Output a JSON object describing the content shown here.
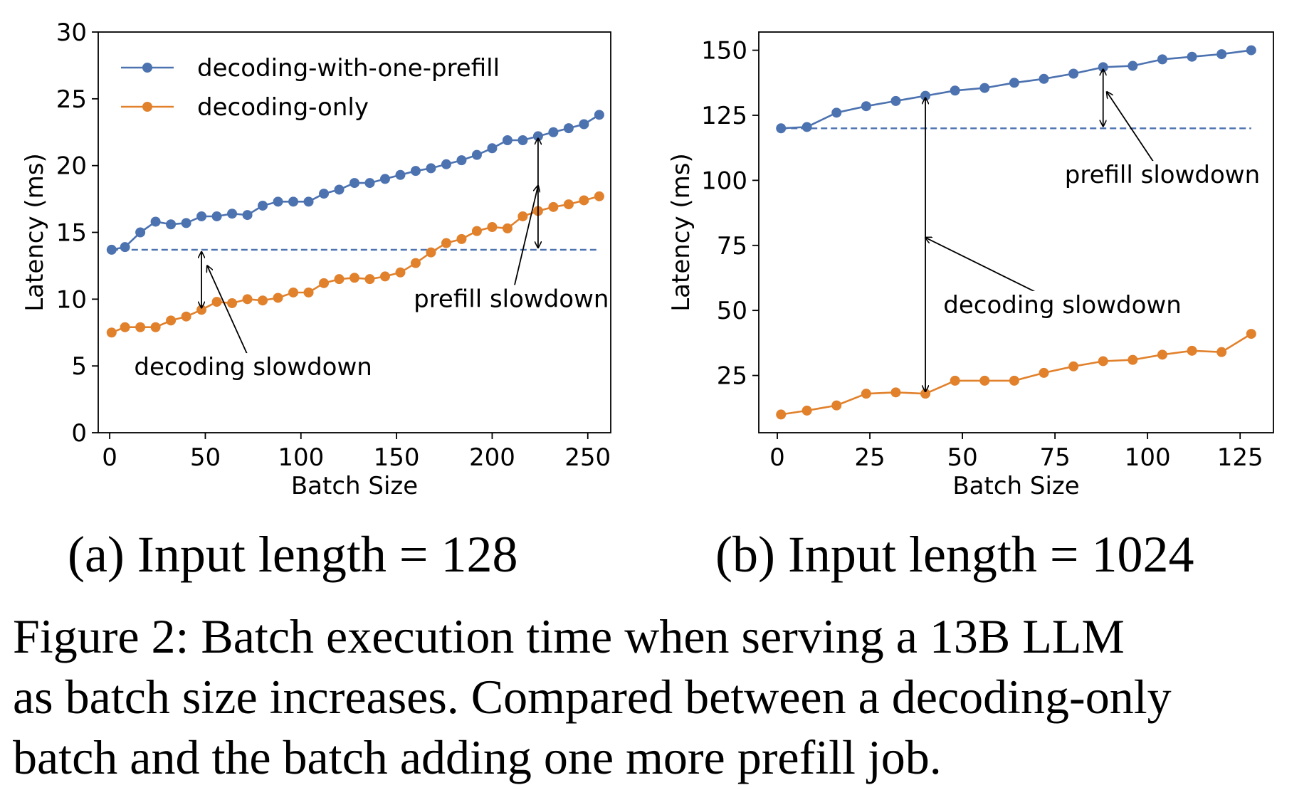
{
  "chart_data": [
    {
      "type": "line",
      "panel": "a",
      "xlabel": "Batch Size",
      "ylabel": "Latency (ms)",
      "xlim": [
        -6,
        262
      ],
      "ylim": [
        0,
        30
      ],
      "xticks": [
        0,
        50,
        100,
        150,
        200,
        250
      ],
      "yticks": [
        0,
        5,
        10,
        15,
        20,
        25,
        30
      ],
      "legend": "top-left",
      "series": [
        {
          "name": "decoding-with-one-prefill",
          "color": "#4c72b0",
          "x": [
            1,
            8,
            16,
            24,
            32,
            40,
            48,
            56,
            64,
            72,
            80,
            88,
            96,
            104,
            112,
            120,
            128,
            136,
            144,
            152,
            160,
            168,
            176,
            184,
            192,
            200,
            208,
            216,
            224,
            232,
            240,
            248,
            256
          ],
          "y": [
            13.7,
            13.9,
            15.0,
            15.8,
            15.6,
            15.7,
            16.2,
            16.2,
            16.4,
            16.3,
            17.0,
            17.3,
            17.3,
            17.3,
            17.9,
            18.2,
            18.7,
            18.7,
            19.0,
            19.3,
            19.6,
            19.8,
            20.1,
            20.4,
            20.8,
            21.3,
            21.9,
            21.9,
            22.2,
            22.5,
            22.8,
            23.1,
            23.8
          ]
        },
        {
          "name": "decoding-only",
          "color": "#e1812c",
          "x": [
            1,
            8,
            16,
            24,
            32,
            40,
            48,
            56,
            64,
            72,
            80,
            88,
            96,
            104,
            112,
            120,
            128,
            136,
            144,
            152,
            160,
            168,
            176,
            184,
            192,
            200,
            208,
            216,
            224,
            232,
            240,
            248,
            256
          ],
          "y": [
            7.5,
            7.9,
            7.9,
            7.9,
            8.4,
            8.7,
            9.2,
            9.8,
            9.7,
            10.0,
            9.9,
            10.1,
            10.5,
            10.5,
            11.2,
            11.5,
            11.6,
            11.5,
            11.7,
            12.0,
            12.7,
            13.5,
            14.2,
            14.5,
            15.1,
            15.4,
            15.3,
            16.2,
            16.6,
            16.9,
            17.1,
            17.4,
            17.7
          ]
        }
      ],
      "baseline": {
        "value": 13.7,
        "x_range": [
          1,
          256
        ],
        "style": "dashed",
        "color": "#4c72b0"
      },
      "annotations": [
        {
          "text": "decoding slowdown",
          "label_at": [
            75,
            4.9
          ],
          "arrow_tip": [
            51,
            12.5
          ],
          "bracket_x": 48,
          "bracket_from": 13.7,
          "bracket_to": 9.2
        },
        {
          "text": "prefill slowdown",
          "label_at": [
            210,
            10.0
          ],
          "arrow_tip": [
            224,
            18.5
          ],
          "bracket_x": 224,
          "bracket_from": 22.2,
          "bracket_to": 13.7
        }
      ]
    },
    {
      "type": "line",
      "panel": "b",
      "xlabel": "Batch Size",
      "ylabel": "Latency (ms)",
      "xlim": [
        -5,
        134
      ],
      "ylim": [
        3,
        157
      ],
      "xticks": [
        0,
        25,
        50,
        75,
        100,
        125
      ],
      "yticks": [
        25,
        50,
        75,
        100,
        125,
        150
      ],
      "series": [
        {
          "name": "decoding-with-one-prefill",
          "color": "#4c72b0",
          "x": [
            1,
            8,
            16,
            24,
            32,
            40,
            48,
            56,
            64,
            72,
            80,
            88,
            96,
            104,
            112,
            120,
            128
          ],
          "y": [
            120,
            120.5,
            126,
            128.5,
            130.5,
            132.5,
            134.5,
            135.5,
            137.5,
            139,
            141,
            143.5,
            144,
            146.5,
            147.5,
            148.5,
            150
          ]
        },
        {
          "name": "decoding-only",
          "color": "#e1812c",
          "x": [
            1,
            8,
            16,
            24,
            32,
            40,
            48,
            56,
            64,
            72,
            80,
            88,
            96,
            104,
            112,
            120,
            128
          ],
          "y": [
            10,
            11.5,
            13.5,
            18,
            18.5,
            18,
            23,
            23,
            23,
            26,
            28.5,
            30.5,
            31,
            33,
            34.5,
            34,
            41
          ]
        }
      ],
      "baseline": {
        "value": 120,
        "x_range": [
          1,
          128
        ],
        "style": "dashed",
        "color": "#4c72b0"
      },
      "annotations": [
        {
          "text": "decoding slowdown",
          "label_at": [
            77,
            52
          ],
          "arrow_tip": [
            40,
            78
          ],
          "bracket_x": 40,
          "bracket_from": 132.5,
          "bracket_to": 18
        },
        {
          "text": "prefill slowdown",
          "label_at": [
            104,
            102
          ],
          "arrow_tip": [
            89,
            134
          ],
          "bracket_x": 88,
          "bracket_from": 143.5,
          "bracket_to": 120
        }
      ]
    }
  ],
  "captions": {
    "sub_a": "(a) Input length = 128",
    "sub_b": "(b) Input length = 1024",
    "figure_line1": "Figure 2: Batch execution time when serving a 13B LLM",
    "figure_line2": "as batch size increases. Compared between a decoding-only",
    "figure_line3": "batch and the batch adding one more prefill job."
  }
}
